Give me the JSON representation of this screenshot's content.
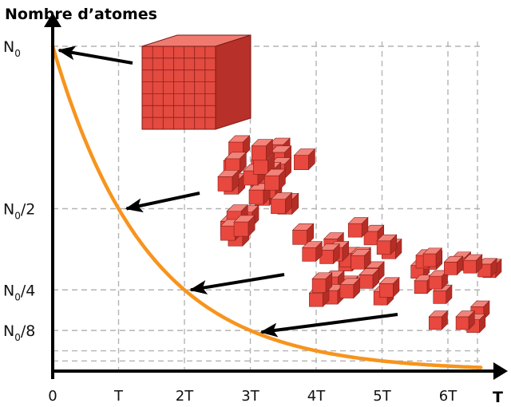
{
  "chart_data": {
    "type": "line",
    "title": "",
    "ylabel": "Nombre d’atomes",
    "xlabel": "T",
    "x_ticks": [
      "0",
      "T",
      "2T",
      "3T",
      "4T",
      "5T",
      "6T"
    ],
    "y_ticks": [
      {
        "base": "N",
        "sub": "0",
        "suffix": ""
      },
      {
        "base": "N",
        "sub": "0",
        "suffix": "/2"
      },
      {
        "base": "N",
        "sub": "0",
        "suffix": "/4"
      },
      {
        "base": "N",
        "sub": "0",
        "suffix": "/8"
      }
    ],
    "x": [
      0,
      1,
      2,
      3,
      4,
      5,
      6,
      6.5
    ],
    "y": [
      1,
      0.5,
      0.25,
      0.125,
      0.0625,
      0.03125,
      0.015625,
      0.011
    ],
    "xlim": [
      0,
      6.5
    ],
    "ylim": [
      0,
      1
    ],
    "grid": true,
    "line_color": "#f7941d",
    "cube_color": "#e8483e",
    "annotations": [
      {
        "type": "arrow",
        "points_to": "N0"
      },
      {
        "type": "arrow",
        "points_to": "N0/2"
      },
      {
        "type": "arrow",
        "points_to": "N0/4"
      },
      {
        "type": "arrow",
        "points_to": "N0/8"
      }
    ]
  }
}
